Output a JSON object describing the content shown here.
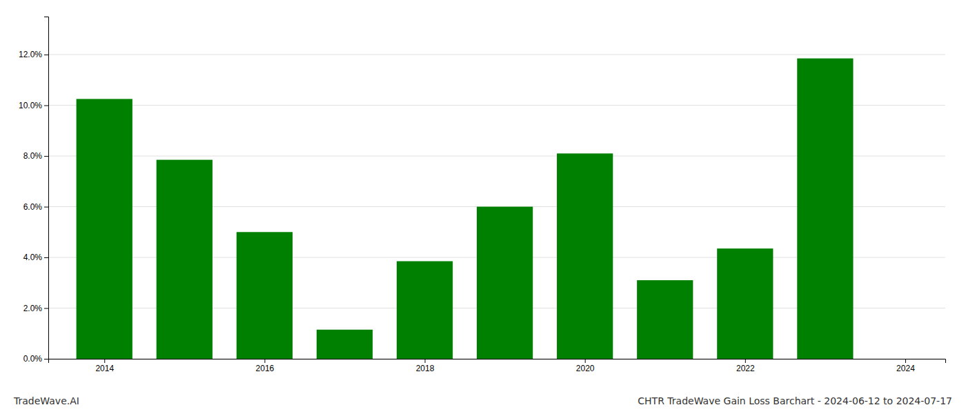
{
  "chart_data": {
    "type": "bar",
    "title": "CHTR TradeWave Gain Loss Barchart - 2024-06-12 to 2024-07-17",
    "annotations": [
      "TradeWave.AI"
    ],
    "x": [
      2014,
      2015,
      2016,
      2017,
      2018,
      2019,
      2020,
      2021,
      2022,
      2023
    ],
    "values": [
      0.1025,
      0.0785,
      0.05,
      0.0115,
      0.0385,
      0.06,
      0.081,
      0.031,
      0.0435,
      0.1185
    ],
    "color": "#008000",
    "xlim": [
      2013.3,
      2024.5
    ],
    "xticks": [
      2014,
      2016,
      2018,
      2020,
      2022,
      2024
    ],
    "ylim": [
      0.0,
      0.135
    ],
    "yticks": [
      {
        "value": 0.0,
        "label": "0.0%"
      },
      {
        "value": 0.02,
        "label": "2.0%"
      },
      {
        "value": 0.04,
        "label": "4.0%"
      },
      {
        "value": 0.06,
        "label": "6.0%"
      },
      {
        "value": 0.08,
        "label": "8.0%"
      },
      {
        "value": 0.1,
        "label": "10.0%"
      },
      {
        "value": 0.12,
        "label": "12.0%"
      }
    ],
    "grid": true
  }
}
